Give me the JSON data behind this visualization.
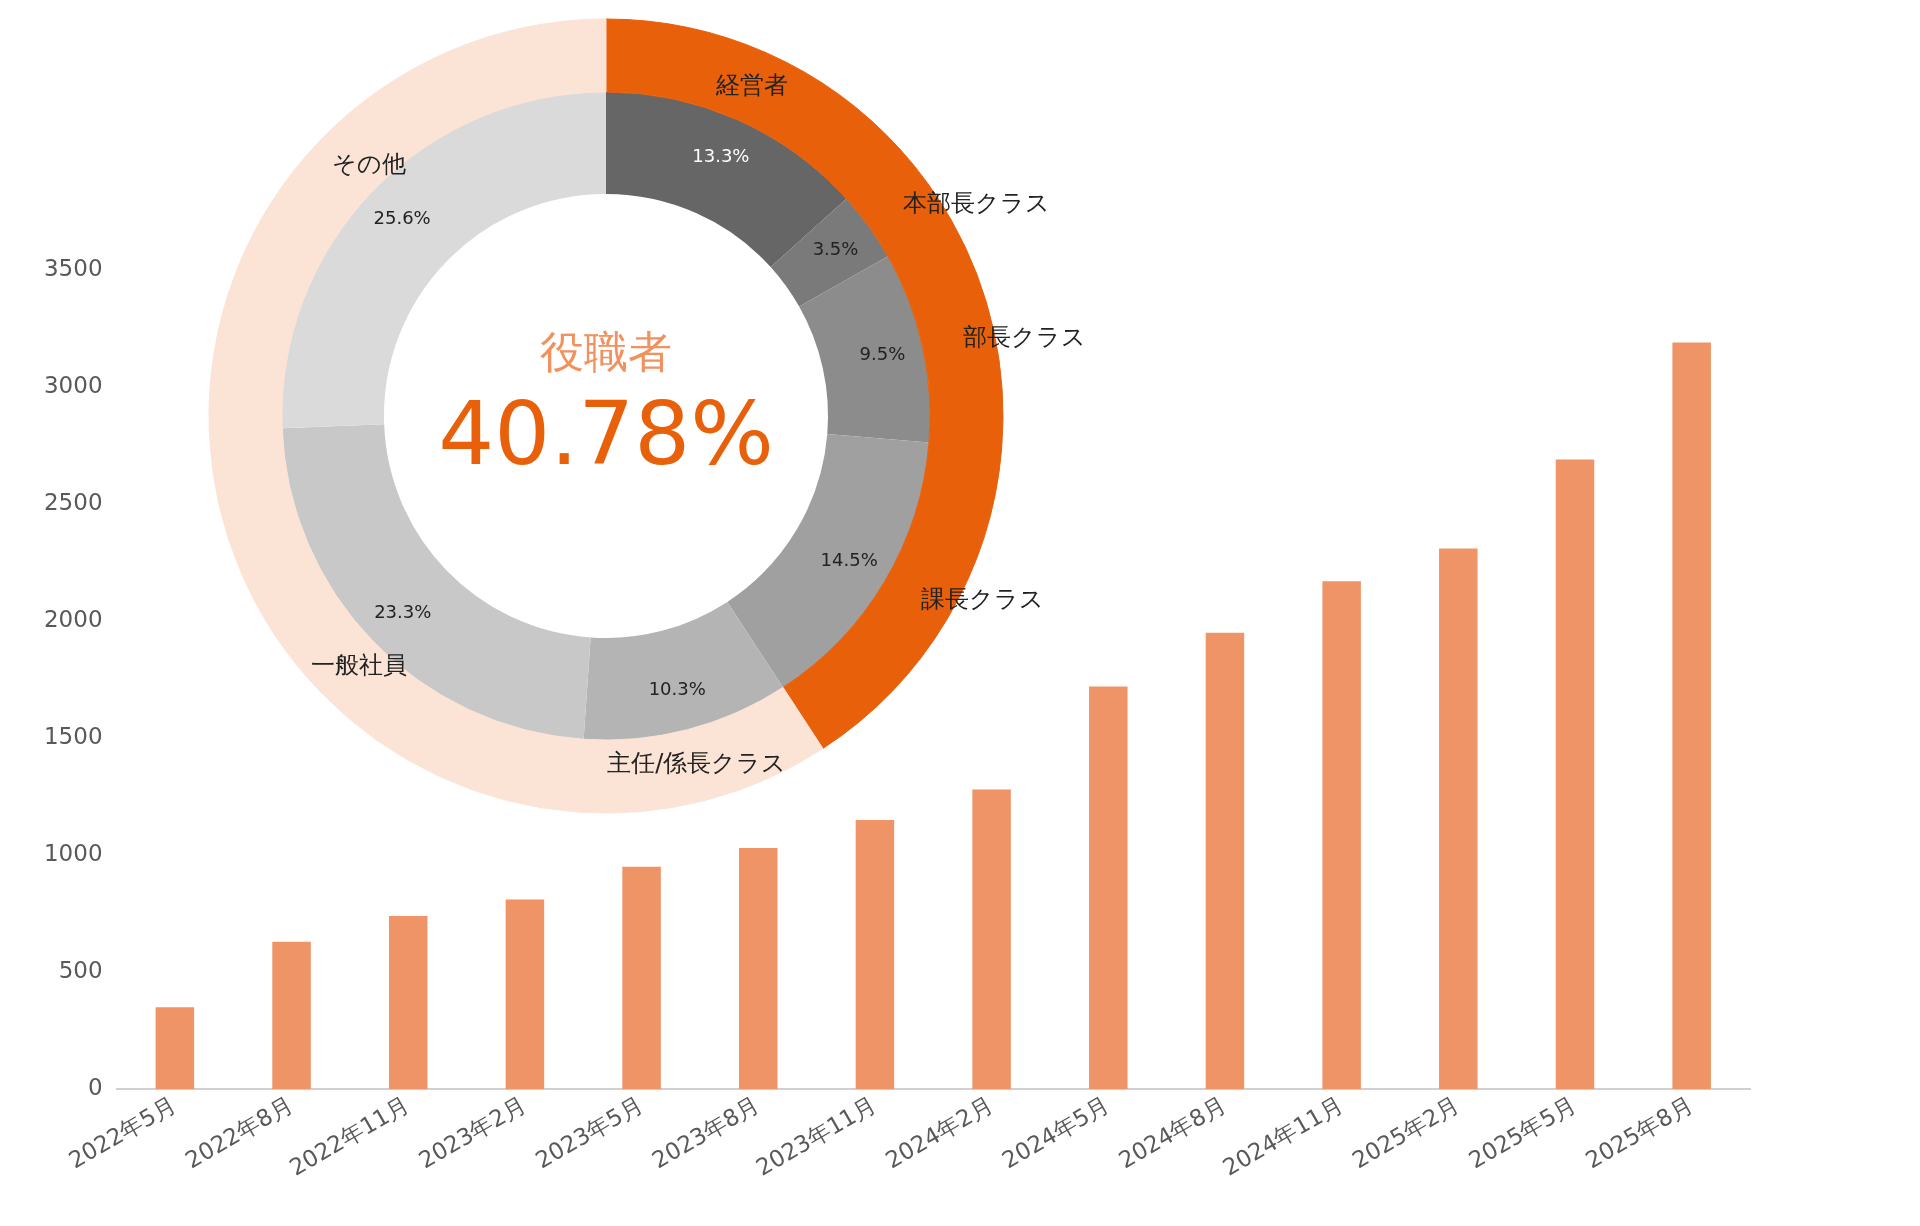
{
  "chart_data": [
    {
      "type": "bar",
      "categories": [
        "2022年5月",
        "2022年8月",
        "2022年11月",
        "2023年2月",
        "2023年5月",
        "2023年8月",
        "2023年11月",
        "2024年2月",
        "2024年5月",
        "2024年8月",
        "2024年11月",
        "2025年2月",
        "2025年5月",
        "2025年8月"
      ],
      "values": [
        350,
        630,
        740,
        810,
        950,
        1030,
        1150,
        1280,
        1720,
        1950,
        2170,
        2310,
        2690,
        3190
      ],
      "color": "#ee9466",
      "ylim": [
        0,
        3500
      ],
      "yticks": [
        0,
        500,
        1000,
        1500,
        2000,
        2500,
        3000,
        3500
      ],
      "grid": false,
      "legend": false
    },
    {
      "type": "donut",
      "title": "役職者",
      "annotations": [
        "40.78%"
      ],
      "categories": [
        "経営者",
        "本部長クラス",
        "部長クラス",
        "課長クラス",
        "主任/係長クラス",
        "一般社員",
        "その他"
      ],
      "series": [
        {
          "values": [
            13.3,
            3.5,
            9.5,
            14.5,
            10.3,
            23.3,
            25.6
          ],
          "colors": [
            "#666666",
            "#7a7a7a",
            "#8c8c8c",
            "#a0a0a0",
            "#b4b4b4",
            "#c8c8c8",
            "#dadada"
          ],
          "value_labels": [
            "13.3%",
            "3.5%",
            "9.5%",
            "14.5%",
            "10.3%",
            "23.3%",
            "25.6%"
          ]
        },
        {
          "values": [
            13.3,
            3.5,
            9.5,
            14.5,
            10.3,
            23.3,
            25.6
          ],
          "colors": [
            "#e8600a",
            "#e8600a",
            "#e8600a",
            "#e8600a",
            "#fbe3d6",
            "#fbe3d6",
            "#fbe3d6"
          ]
        }
      ],
      "legend": false
    }
  ]
}
